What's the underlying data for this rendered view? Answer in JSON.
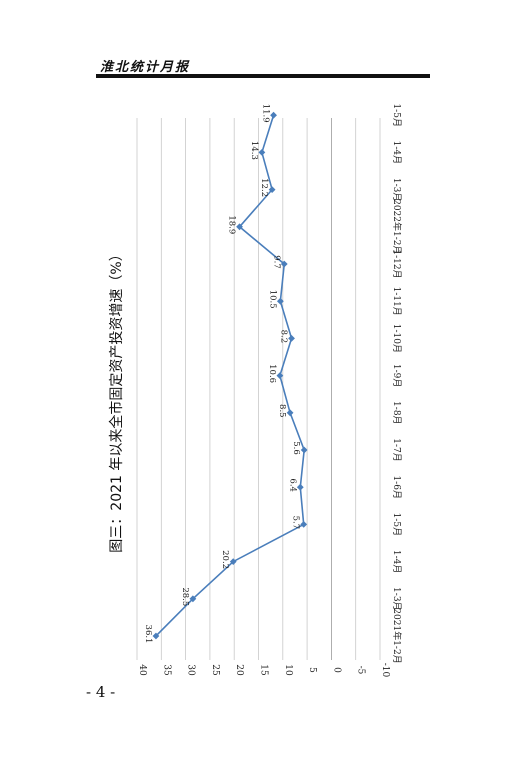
{
  "header": {
    "title": "淮北统计月报"
  },
  "page": {
    "number": "- 4 -"
  },
  "chart_data": {
    "type": "line",
    "title": "图三：2021 年以来全市固定资产投资增速（%）",
    "categories": [
      "2021年1-2月",
      "1-3月",
      "1-4月",
      "1-5月",
      "1-6月",
      "1-7月",
      "1-8月",
      "1-9月",
      "1-10月",
      "1-11月",
      "1-12月",
      "2022年1-2月",
      "1-3月",
      "1-4月",
      "1-5月"
    ],
    "series": [
      {
        "values": [
          36.1,
          28.5,
          20.2,
          5.7,
          6.4,
          5.6,
          8.5,
          10.6,
          8.2,
          10.5,
          9.7,
          18.9,
          12.2,
          14.3,
          11.9
        ],
        "labels": [
          "36.1",
          "28.5",
          "20.2",
          "5.7",
          "6.4",
          "5.6",
          "8.5",
          "10.6",
          "8.2",
          "10.5",
          "9.7",
          "18.9",
          "12.2",
          "14.3",
          "11.9"
        ]
      }
    ],
    "yticks": [
      "40",
      "35",
      "30",
      "25",
      "20",
      "15",
      "10",
      "5",
      "0",
      "-5",
      "-10"
    ],
    "ylim": [
      -10,
      40
    ],
    "grid": true,
    "orientation": "rotated-90-clockwise",
    "line_color": "#4a7ebb"
  }
}
